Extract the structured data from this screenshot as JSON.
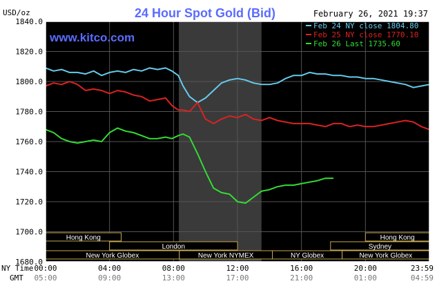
{
  "header": {
    "title": "24 Hour Spot Gold (Bid)",
    "date_time": "February 26, 2021 19:37",
    "watermark": "www.kitco.com",
    "y_unit": "USD/oz"
  },
  "axis_row_labels": {
    "nytime": "NY Time",
    "gmt": "GMT"
  },
  "colors": {
    "background": "#000000",
    "frame": "#ffffff",
    "grid": "#555555",
    "nymex_shade": "#3a3a3a",
    "title": "#5a6cff",
    "watermark": "#5a6cff",
    "series_feb24": "#66ccee",
    "series_feb25": "#dd2222",
    "series_feb26": "#33dd33",
    "session_box": "#c8a850"
  },
  "sessions": [
    {
      "label": "Hong Kong",
      "start": 0,
      "end": 6.5,
      "row": 1
    },
    {
      "label": "London",
      "start": 5.5,
      "end": 16.5,
      "row": 2
    },
    {
      "label": "New York Globex",
      "start": 0,
      "end": 11.5,
      "row": 3
    },
    {
      "label": "New York NYMEX",
      "start": 11.5,
      "end": 19.5,
      "row": 3
    },
    {
      "label": "NY Globex",
      "start": 19.5,
      "end": 25.5,
      "row": 3
    },
    {
      "label": "Hong Kong",
      "start": 27.5,
      "end": 33,
      "row": 1
    },
    {
      "label": "Sydney",
      "start": 24.5,
      "end": 33,
      "row": 2
    },
    {
      "label": "New York Globex",
      "start": 25.5,
      "end": 33,
      "row": 3
    }
  ],
  "chart_data": {
    "type": "line",
    "title": "24 Hour Spot Gold (Bid)",
    "ylabel": "USD/oz",
    "ylim": [
      1680,
      1840
    ],
    "xlim": [
      0,
      24
    ],
    "x_ticks": [
      {
        "x": 0,
        "ny": "00:00",
        "gmt": "05:00"
      },
      {
        "x": 4,
        "ny": "04:00",
        "gmt": "09:00"
      },
      {
        "x": 8,
        "ny": "08:00",
        "gmt": "13:00"
      },
      {
        "x": 12,
        "ny": "12:00",
        "gmt": "17:00"
      },
      {
        "x": 16,
        "ny": "16:00",
        "gmt": "21:00"
      },
      {
        "x": 20,
        "ny": "20:00",
        "gmt": "01:00"
      },
      {
        "x": 24,
        "ny": "23:59",
        "gmt": "04:59"
      }
    ],
    "y_ticks": [
      {
        "v": 1840,
        "label": "1840.0"
      },
      {
        "v": 1820,
        "label": "1820.0"
      },
      {
        "v": 1800,
        "label": "1800.0"
      },
      {
        "v": 1780,
        "label": "1780.0"
      },
      {
        "v": 1760,
        "label": "1760.0"
      },
      {
        "v": 1740,
        "label": "1740.0"
      },
      {
        "v": 1720,
        "label": "1720.0"
      },
      {
        "v": 1700,
        "label": "1700.0"
      },
      {
        "v": 1680,
        "label": "1680.0"
      }
    ],
    "shaded_range": [
      8.33,
      13.5
    ],
    "grid": true,
    "legend_position": "top-right",
    "series": [
      {
        "name": "Feb 24 NY close 1804.80",
        "color": "#66ccee",
        "x": [
          0,
          0.5,
          1,
          1.5,
          2,
          2.5,
          3,
          3.5,
          4,
          4.5,
          5,
          5.5,
          6,
          6.5,
          7,
          7.5,
          7.9,
          8.3,
          8.6,
          9,
          9.5,
          10,
          10.5,
          11,
          11.5,
          12,
          12.5,
          13,
          13.5,
          14,
          14.5,
          15,
          15.5,
          16,
          16.5,
          17,
          17.5,
          18,
          18.5,
          19,
          19.5,
          20,
          20.5,
          21,
          21.5,
          22,
          22.5,
          23,
          23.5,
          24
        ],
        "y": [
          1809,
          1807,
          1808,
          1806,
          1806,
          1805,
          1807,
          1804,
          1806,
          1807,
          1806,
          1808,
          1807,
          1809,
          1808,
          1809,
          1807,
          1804,
          1797,
          1790,
          1786,
          1789,
          1794,
          1799,
          1801,
          1802,
          1801,
          1799,
          1798,
          1798,
          1799,
          1802,
          1804,
          1804,
          1806,
          1805,
          1805,
          1804,
          1804,
          1803,
          1803,
          1802,
          1802,
          1801,
          1800,
          1799,
          1798,
          1796,
          1797,
          1798
        ]
      },
      {
        "name": "Feb 25 NY close 1770.10",
        "color": "#dd2222",
        "x": [
          0,
          0.5,
          1,
          1.5,
          2,
          2.5,
          3,
          3.5,
          4,
          4.5,
          5,
          5.5,
          6,
          6.5,
          7,
          7.5,
          7.9,
          8.3,
          8.6,
          9,
          9.5,
          10,
          10.5,
          11,
          11.5,
          12,
          12.5,
          13,
          13.5,
          14,
          14.5,
          15,
          15.5,
          16,
          16.5,
          17,
          17.5,
          18,
          18.5,
          19,
          19.5,
          20,
          20.5,
          21,
          21.5,
          22,
          22.5,
          23,
          23.5,
          24
        ],
        "y": [
          1797,
          1799,
          1798,
          1800,
          1798,
          1794,
          1795,
          1794,
          1792,
          1794,
          1793,
          1791,
          1790,
          1787,
          1788,
          1789,
          1784,
          1781,
          1781,
          1780,
          1786,
          1775,
          1772,
          1775,
          1777,
          1776,
          1778,
          1775,
          1774,
          1776,
          1774,
          1773,
          1772,
          1772,
          1772,
          1771,
          1770,
          1772,
          1772,
          1770,
          1771,
          1770,
          1770,
          1771,
          1772,
          1773,
          1774,
          1773,
          1770,
          1768
        ]
      },
      {
        "name": "Feb 26 Last 1735.60",
        "color": "#33dd33",
        "x": [
          0,
          0.5,
          1,
          1.5,
          2,
          2.5,
          3,
          3.5,
          4,
          4.5,
          5,
          5.5,
          6,
          6.5,
          7,
          7.5,
          7.9,
          8.3,
          8.6,
          9,
          9.5,
          10,
          10.5,
          11,
          11.5,
          12,
          12.5,
          13,
          13.5,
          14,
          14.5,
          15,
          15.5,
          16,
          16.5,
          17,
          17.5,
          18
        ],
        "y": [
          1768,
          1766,
          1762,
          1760,
          1759,
          1760,
          1761,
          1760,
          1766,
          1769,
          1767,
          1766,
          1764,
          1762,
          1762,
          1763,
          1762,
          1764,
          1765,
          1763,
          1752,
          1740,
          1729,
          1726,
          1725,
          1720,
          1719,
          1723,
          1727,
          1728,
          1730,
          1731,
          1731,
          1732,
          1733,
          1734,
          1735.6,
          1735.6
        ]
      }
    ]
  }
}
